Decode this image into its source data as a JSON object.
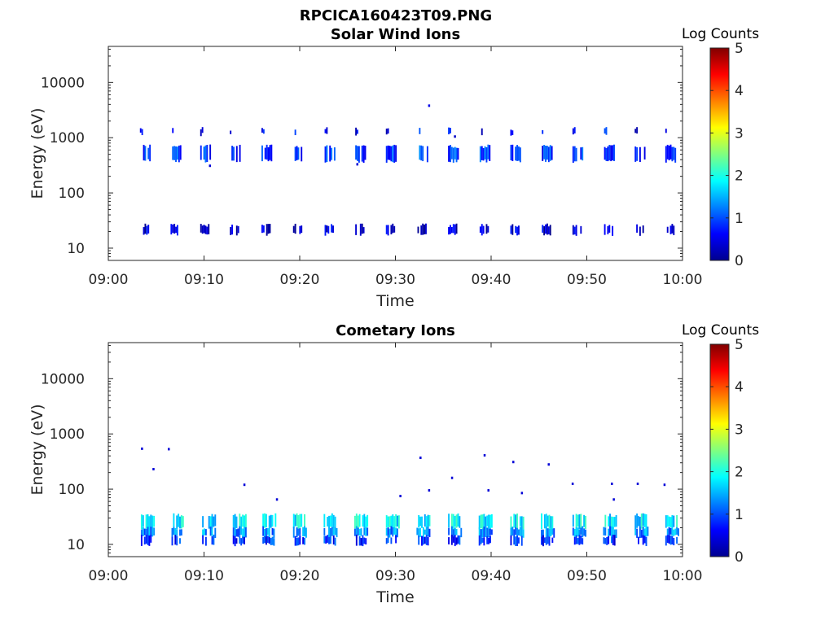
{
  "figure": {
    "title": "RPCICA160423T09.PNG"
  },
  "colormap": [
    "#00008f",
    "#0000ff",
    "#0080ff",
    "#00ffff",
    "#80ff80",
    "#ffff00",
    "#ff8000",
    "#ff0000",
    "#800000"
  ],
  "chart_data": [
    {
      "type": "heatmap",
      "title": "Solar Wind Ions",
      "xlabel": "Time",
      "ylabel": "Energy (eV)",
      "yscale": "log",
      "x_ticks": [
        "09:00",
        "09:10",
        "09:20",
        "09:30",
        "09:40",
        "09:50",
        "10:00"
      ],
      "xlim_minutes": [
        0,
        60
      ],
      "y_ticks": [
        "10",
        "100",
        "1000",
        "10000"
      ],
      "ylim": [
        6,
        45000
      ],
      "colorbar": {
        "label": "Log Counts",
        "range": [
          0,
          5
        ],
        "ticks": [
          "0",
          "1",
          "2",
          "3",
          "4",
          "5"
        ]
      },
      "scan_start_minutes": [
        3.3,
        6.5,
        9.6,
        12.7,
        16.0,
        19.3,
        22.6,
        25.8,
        29.0,
        32.3,
        35.5,
        38.8,
        42.0,
        45.3,
        48.5,
        51.8,
        55.0,
        58.2
      ],
      "bands": [
        {
          "energy_low": 380,
          "energy_high": 700,
          "level": 0.9,
          "duration_min": 1.1
        },
        {
          "energy_low": 1150,
          "energy_high": 1450,
          "level": 0.6,
          "duration_min": 0.4
        },
        {
          "energy_low": 18,
          "energy_high": 26,
          "level": 0.4,
          "duration_min": 1.0
        }
      ],
      "sparse_points": [
        {
          "t": 33.5,
          "energy": 3800,
          "level": 0.5
        },
        {
          "t": 10.6,
          "energy": 310,
          "level": 0.4
        },
        {
          "t": 26.0,
          "energy": 330,
          "level": 0.4
        },
        {
          "t": 36.2,
          "energy": 1050,
          "level": 0.3
        }
      ]
    },
    {
      "type": "heatmap",
      "title": "Cometary Ions",
      "xlabel": "Time",
      "ylabel": "Energy (eV)",
      "yscale": "log",
      "x_ticks": [
        "09:00",
        "09:10",
        "09:20",
        "09:30",
        "09:40",
        "09:50",
        "10:00"
      ],
      "xlim_minutes": [
        0,
        60
      ],
      "y_ticks": [
        "10",
        "100",
        "1000",
        "10000"
      ],
      "ylim": [
        6,
        45000
      ],
      "colorbar": {
        "label": "Log Counts",
        "range": [
          0,
          5
        ],
        "ticks": [
          "0",
          "1",
          "2",
          "3",
          "4",
          "5"
        ]
      },
      "scan_start_minutes": [
        3.4,
        6.6,
        9.8,
        13.0,
        16.1,
        19.3,
        22.5,
        25.7,
        29.0,
        32.2,
        35.5,
        38.7,
        42.0,
        45.2,
        48.5,
        51.7,
        55.0,
        58.2
      ],
      "bands": [
        {
          "energy_low": 20,
          "energy_high": 34,
          "level": 1.8,
          "duration_min": 1.5
        },
        {
          "energy_low": 14,
          "energy_high": 20,
          "level": 1.3,
          "duration_min": 1.5
        },
        {
          "energy_low": 10,
          "energy_high": 14,
          "level": 0.8,
          "duration_min": 1.3
        }
      ],
      "sparse_points": [
        {
          "t": 3.5,
          "energy": 540,
          "level": 0.4
        },
        {
          "t": 4.7,
          "energy": 230,
          "level": 0.4
        },
        {
          "t": 6.3,
          "energy": 530,
          "level": 0.4
        },
        {
          "t": 14.2,
          "energy": 120,
          "level": 0.4
        },
        {
          "t": 17.6,
          "energy": 65,
          "level": 0.4
        },
        {
          "t": 30.5,
          "energy": 75,
          "level": 0.4
        },
        {
          "t": 32.6,
          "energy": 370,
          "level": 0.4
        },
        {
          "t": 33.5,
          "energy": 95,
          "level": 0.4
        },
        {
          "t": 35.9,
          "energy": 160,
          "level": 0.4
        },
        {
          "t": 39.3,
          "energy": 410,
          "level": 0.4
        },
        {
          "t": 39.7,
          "energy": 95,
          "level": 0.4
        },
        {
          "t": 42.3,
          "energy": 310,
          "level": 0.4
        },
        {
          "t": 46.0,
          "energy": 280,
          "level": 0.4
        },
        {
          "t": 48.5,
          "energy": 125,
          "level": 0.4
        },
        {
          "t": 52.6,
          "energy": 125,
          "level": 0.4
        },
        {
          "t": 55.3,
          "energy": 125,
          "level": 0.4
        },
        {
          "t": 58.1,
          "energy": 120,
          "level": 0.4
        },
        {
          "t": 43.2,
          "energy": 85,
          "level": 0.4
        },
        {
          "t": 52.8,
          "energy": 65,
          "level": 0.4
        }
      ]
    }
  ]
}
